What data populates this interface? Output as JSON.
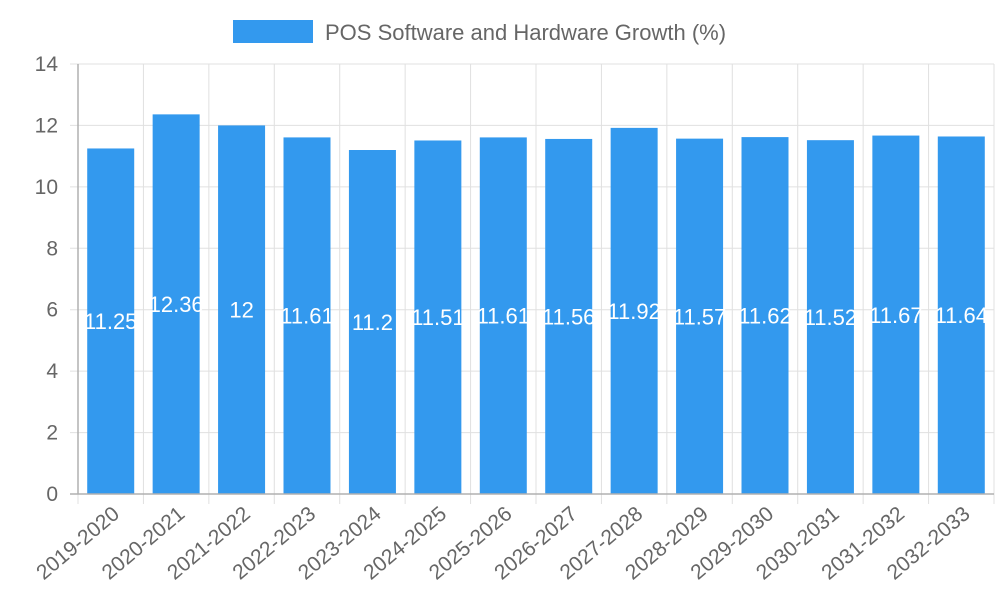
{
  "chart_data": {
    "type": "bar",
    "categories": [
      "2019-2020",
      "2020-2021",
      "2021-2022",
      "2022-2023",
      "2023-2024",
      "2024-2025",
      "2025-2026",
      "2026-2027",
      "2027-2028",
      "2028-2029",
      "2029-2030",
      "2030-2031",
      "2031-2032",
      "2032-2033"
    ],
    "series": [
      {
        "name": "POS Software and Hardware Growth (%)",
        "values": [
          11.25,
          12.36,
          12,
          11.61,
          11.2,
          11.51,
          11.61,
          11.56,
          11.92,
          11.57,
          11.62,
          11.52,
          11.67,
          11.64
        ],
        "data_labels": [
          "11.25",
          "12.36",
          "12",
          "11.61",
          "11.2",
          "11.51",
          "11.61",
          "11.56",
          "11.92",
          "11.57",
          "11.62",
          "11.52",
          "11.67",
          "11.64"
        ],
        "color": "#3399ee"
      }
    ],
    "ylim": [
      0,
      14
    ],
    "yticks": [
      "0",
      "2",
      "4",
      "6",
      "8",
      "10",
      "12",
      "14"
    ],
    "grid": true,
    "legend": "top-center",
    "gridColor": "#e0e0e0",
    "axisColor": "#b0b0b0"
  }
}
